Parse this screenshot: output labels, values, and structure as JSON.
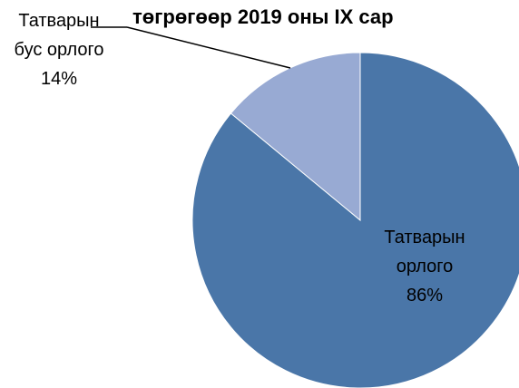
{
  "chart_data": {
    "type": "pie",
    "title": "төгрөгөөр 2019 оны IX сар",
    "categories": [
      "Татварын орлого",
      "Татварын бус орлого"
    ],
    "values": [
      86,
      14
    ],
    "value_labels": [
      "86%",
      "14%"
    ],
    "colors": [
      "#4a76a8",
      "#98aad3"
    ]
  }
}
